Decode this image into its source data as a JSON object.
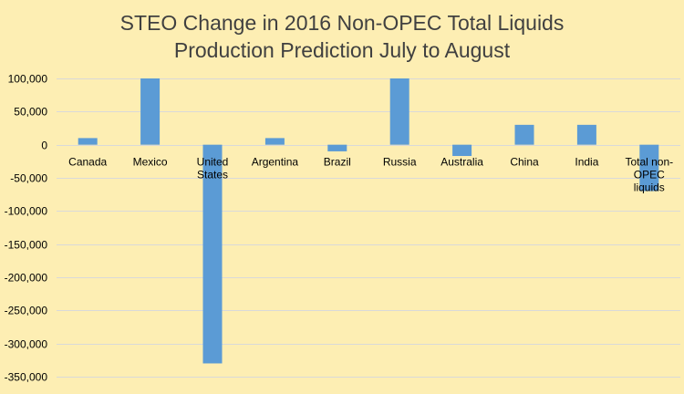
{
  "chart_data": {
    "type": "bar",
    "title_lines": [
      "STEO Change in 2016 Non-OPEC Total Liquids",
      "Production Prediction July to August"
    ],
    "categories": [
      "Canada",
      "Mexico",
      "United States",
      "Argentina",
      "Brazil",
      "Russia",
      "Australia",
      "China",
      "India",
      "Total non-OPEC liquids"
    ],
    "category_label_lines": [
      [
        "Canada"
      ],
      [
        "Mexico"
      ],
      [
        "United",
        "States"
      ],
      [
        "Argentina"
      ],
      [
        "Brazil"
      ],
      [
        "Russia"
      ],
      [
        "Australia"
      ],
      [
        "China"
      ],
      [
        "India"
      ],
      [
        "Total non-",
        "OPEC",
        "liquids"
      ]
    ],
    "values": [
      10000,
      100000,
      -330000,
      10000,
      -10000,
      100000,
      -17000,
      30000,
      30000,
      -70000
    ],
    "ylim": [
      -350000,
      100000
    ],
    "yticks": [
      100000,
      50000,
      0,
      -50000,
      -100000,
      -150000,
      -200000,
      -250000,
      -300000,
      -350000
    ],
    "ytick_labels": [
      "100,000",
      "50,000",
      "0",
      "-50,000",
      "-100,000",
      "-150,000",
      "-200,000",
      "-250,000",
      "-300,000",
      "-350,000"
    ],
    "grid": true,
    "bar_color": "#5b9bd5",
    "grid_color": "#d9d9d9",
    "background_color": "#fdeeb3",
    "title_color": "#404040"
  }
}
